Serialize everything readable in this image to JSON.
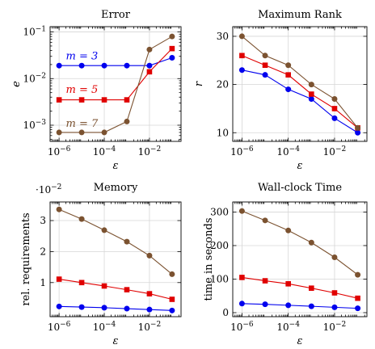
{
  "colors": {
    "m3": "#0000ee",
    "m5": "#e00000",
    "m7": "#7b5230"
  },
  "x_ticks": [
    {
      "base": "10",
      "exp": "−6",
      "v": 1e-06
    },
    {
      "base": "10",
      "exp": "−4",
      "v": 0.0001
    },
    {
      "base": "10",
      "exp": "−2",
      "v": 0.01
    }
  ],
  "chart_data": [
    {
      "id": "error",
      "type": "line",
      "title": "Error",
      "xlabel": "ε",
      "ylabel": "e",
      "yscale": "log",
      "xscale": "log",
      "x": [
        1e-06,
        1e-05,
        0.0001,
        0.001,
        0.01,
        0.1
      ],
      "xlim": [
        4e-07,
        0.25
      ],
      "ylim": [
        0.00045,
        0.13
      ],
      "y_ticks": [
        {
          "v": 0.001,
          "base": "10",
          "exp": "−3"
        },
        {
          "v": 0.01,
          "base": "10",
          "exp": "−2"
        },
        {
          "v": 0.1,
          "base": "10",
          "exp": "−1"
        }
      ],
      "annotations": [
        {
          "text": "m = 3",
          "color_key": "m3",
          "x": 2e-06,
          "y": 0.026
        },
        {
          "text": "m = 5",
          "color_key": "m5",
          "x": 2e-06,
          "y": 0.0049
        },
        {
          "text": "m = 7",
          "color_key": "m7",
          "x": 2e-06,
          "y": 0.00093
        }
      ],
      "series": [
        {
          "color_key": "m3",
          "marker": "circle",
          "values": [
            0.019,
            0.019,
            0.019,
            0.019,
            0.019,
            0.028
          ]
        },
        {
          "color_key": "m5",
          "marker": "square",
          "values": [
            0.0035,
            0.0035,
            0.0035,
            0.0035,
            0.014,
            0.044
          ]
        },
        {
          "color_key": "m7",
          "marker": "circle",
          "values": [
            0.0007,
            0.0007,
            0.0007,
            0.0012,
            0.042,
            0.08
          ]
        }
      ]
    },
    {
      "id": "rank",
      "type": "line",
      "title": "Maximum Rank",
      "xlabel": "ε",
      "ylabel": "r",
      "yscale": "linear",
      "xscale": "log",
      "x": [
        1e-06,
        1e-05,
        0.0001,
        0.001,
        0.01,
        0.1
      ],
      "xlim": [
        4e-07,
        0.25
      ],
      "ylim": [
        8.2,
        32
      ],
      "y_ticks": [
        {
          "v": 10,
          "label": "10"
        },
        {
          "v": 20,
          "label": "20"
        },
        {
          "v": 30,
          "label": "30"
        }
      ],
      "series": [
        {
          "color_key": "m3",
          "marker": "circle",
          "values": [
            23,
            22,
            19,
            17,
            13,
            10
          ]
        },
        {
          "color_key": "m5",
          "marker": "square",
          "values": [
            26,
            24,
            22,
            18,
            15,
            11
          ]
        },
        {
          "color_key": "m7",
          "marker": "circle",
          "values": [
            30,
            26,
            24,
            20,
            17,
            11
          ]
        }
      ]
    },
    {
      "id": "memory",
      "type": "line",
      "title": "Memory",
      "xlabel": "ε",
      "ylabel": "rel. requirements",
      "yscale": "linear",
      "xscale": "log",
      "y_multiplier": {
        "base": "·10",
        "exp": "−2"
      },
      "x": [
        1e-06,
        1e-05,
        0.0001,
        0.001,
        0.01,
        0.1
      ],
      "xlim": [
        4e-07,
        0.25
      ],
      "ylim": [
        -0.1,
        3.6
      ],
      "y_ticks": [
        {
          "v": 1,
          "label": "1"
        },
        {
          "v": 2,
          "label": "2"
        },
        {
          "v": 3,
          "label": "3"
        }
      ],
      "series": [
        {
          "color_key": "m3",
          "marker": "circle",
          "values": [
            0.23,
            0.21,
            0.19,
            0.16,
            0.13,
            0.1
          ]
        },
        {
          "color_key": "m5",
          "marker": "square",
          "values": [
            1.11,
            1.0,
            0.89,
            0.77,
            0.64,
            0.46
          ]
        },
        {
          "color_key": "m7",
          "marker": "circle",
          "values": [
            3.36,
            3.05,
            2.69,
            2.32,
            1.87,
            1.27
          ]
        }
      ]
    },
    {
      "id": "time",
      "type": "line",
      "title": "Wall-clock Time",
      "xlabel": "ε",
      "ylabel": "time in seconds",
      "yscale": "linear",
      "xscale": "log",
      "x": [
        1e-06,
        1e-05,
        0.0001,
        0.001,
        0.01,
        0.1
      ],
      "xlim": [
        4e-07,
        0.25
      ],
      "ylim": [
        -12,
        330
      ],
      "y_ticks": [
        {
          "v": 0,
          "label": "0"
        },
        {
          "v": 100,
          "label": "100"
        },
        {
          "v": 200,
          "label": "200"
        },
        {
          "v": 300,
          "label": "300"
        }
      ],
      "series": [
        {
          "color_key": "m3",
          "marker": "circle",
          "values": [
            27,
            25,
            22,
            19,
            16,
            13
          ]
        },
        {
          "color_key": "m5",
          "marker": "square",
          "values": [
            105,
            95,
            86,
            73,
            59,
            43
          ]
        },
        {
          "color_key": "m7",
          "marker": "circle",
          "values": [
            303,
            275,
            245,
            209,
            165,
            113
          ]
        }
      ]
    }
  ]
}
